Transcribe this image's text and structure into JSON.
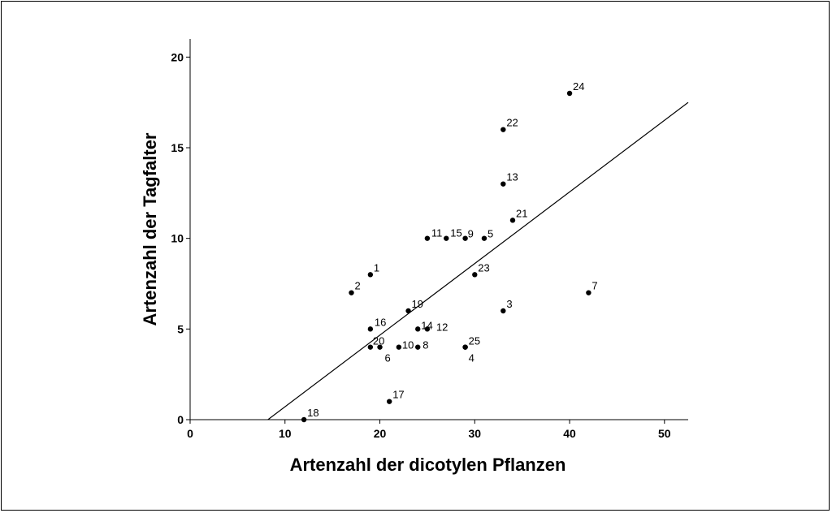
{
  "chart_data": {
    "type": "scatter",
    "title": "",
    "xlabel": "Artenzahl der dicotylen Pflanzen",
    "ylabel": "Artenzahl der Tagfalter",
    "xlim": [
      0,
      52.5
    ],
    "ylim": [
      0,
      21
    ],
    "xticks": [
      0,
      10,
      20,
      30,
      40,
      50
    ],
    "yticks": [
      0,
      5,
      10,
      15,
      20
    ],
    "grid": false,
    "legend": "none",
    "points": [
      {
        "label": "1",
        "x": 19,
        "y": 8
      },
      {
        "label": "2",
        "x": 17,
        "y": 7
      },
      {
        "label": "3",
        "x": 33,
        "y": 6
      },
      {
        "label": "4",
        "x": 29,
        "y": 4
      },
      {
        "label": "5",
        "x": 31,
        "y": 10
      },
      {
        "label": "6",
        "x": 20,
        "y": 4
      },
      {
        "label": "7",
        "x": 42,
        "y": 7
      },
      {
        "label": "8",
        "x": 24,
        "y": 4
      },
      {
        "label": "9",
        "x": 29,
        "y": 10
      },
      {
        "label": "10",
        "x": 22,
        "y": 4
      },
      {
        "label": "11",
        "x": 25,
        "y": 10
      },
      {
        "label": "12",
        "x": 25,
        "y": 5
      },
      {
        "label": "13",
        "x": 33,
        "y": 13
      },
      {
        "label": "14",
        "x": 24,
        "y": 5
      },
      {
        "label": "15",
        "x": 27,
        "y": 10
      },
      {
        "label": "16",
        "x": 19,
        "y": 5
      },
      {
        "label": "17",
        "x": 21,
        "y": 1
      },
      {
        "label": "18",
        "x": 12,
        "y": 0
      },
      {
        "label": "19",
        "x": 23,
        "y": 6
      },
      {
        "label": "20",
        "x": 19,
        "y": 4
      },
      {
        "label": "21",
        "x": 34,
        "y": 11
      },
      {
        "label": "22",
        "x": 33,
        "y": 16
      },
      {
        "label": "23",
        "x": 30,
        "y": 8
      },
      {
        "label": "24",
        "x": 40,
        "y": 18
      },
      {
        "label": "25",
        "x": 29,
        "y": 4
      }
    ],
    "regression_line": {
      "x": [
        8.2,
        52.5
      ],
      "y": [
        0,
        17.5
      ]
    }
  }
}
